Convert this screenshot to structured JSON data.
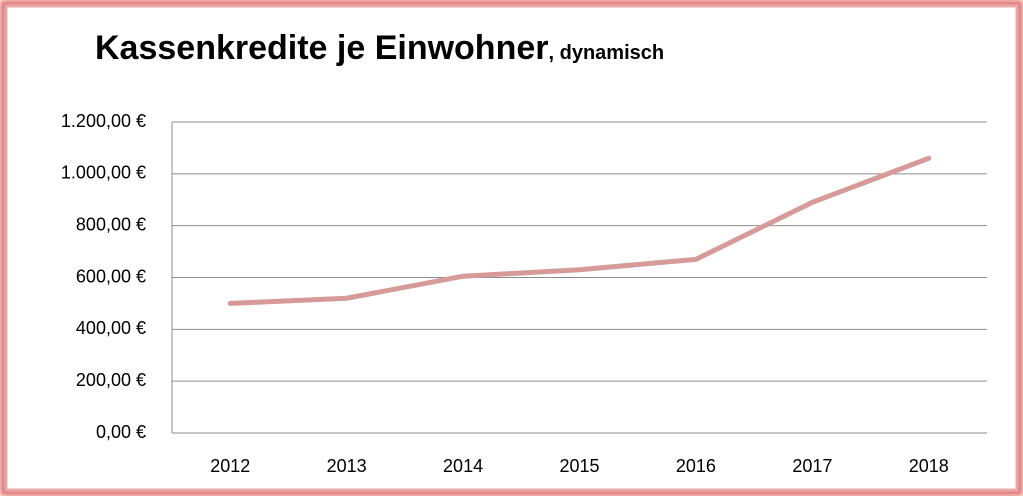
{
  "chart_data": {
    "type": "line",
    "title": "Kassenkredite je Einwohner",
    "subtitle": ", dynamisch",
    "categories": [
      "2012",
      "2013",
      "2014",
      "2015",
      "2016",
      "2017",
      "2018"
    ],
    "series": [
      {
        "name": "Kassenkredite je Einwohner",
        "color": "#d69a98",
        "values": [
          500,
          520,
          605,
          630,
          670,
          890,
          1060
        ]
      }
    ],
    "ylim": [
      0,
      1200
    ],
    "yticks": [
      {
        "value": 0,
        "label": "0,00 €"
      },
      {
        "value": 200,
        "label": "200,00 €"
      },
      {
        "value": 400,
        "label": "400,00 €"
      },
      {
        "value": 600,
        "label": "600,00 €"
      },
      {
        "value": 800,
        "label": "800,00 €"
      },
      {
        "value": 1000,
        "label": "1.000,00 €"
      },
      {
        "value": 1200,
        "label": "1.200,00 €"
      }
    ],
    "grid": true,
    "legend": false
  }
}
